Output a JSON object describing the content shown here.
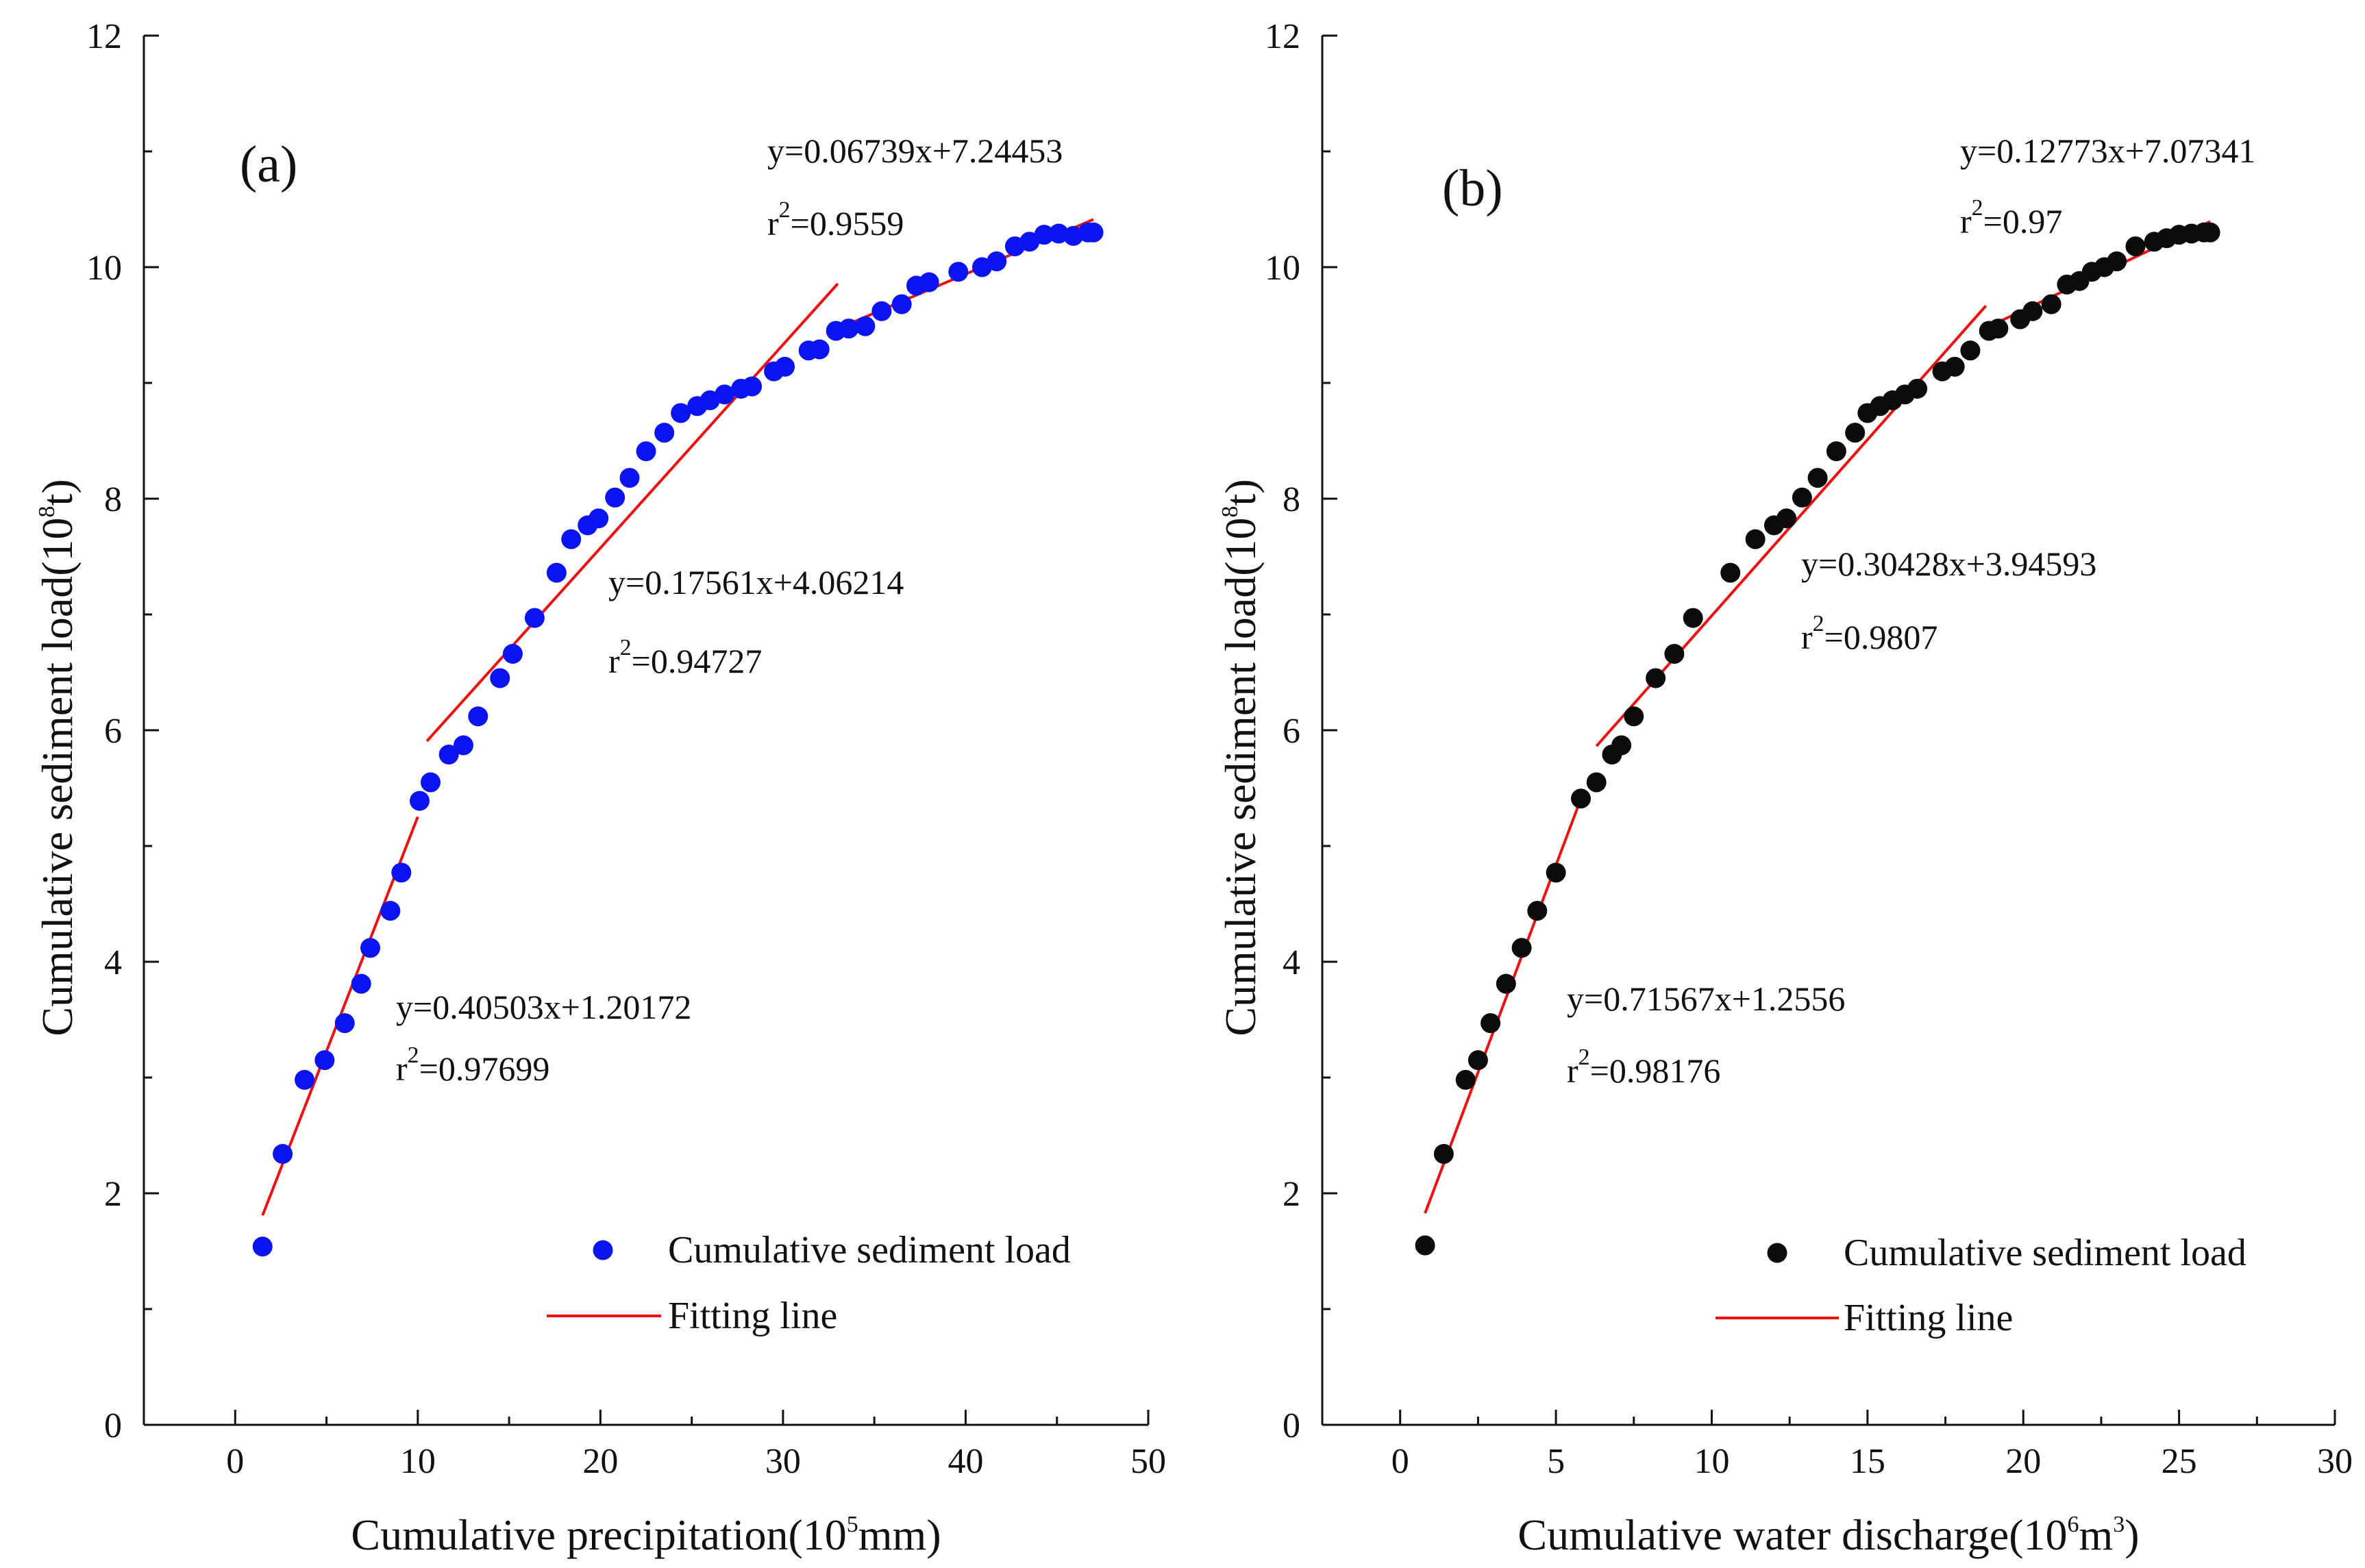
{
  "figure": {
    "description_free": true
  },
  "chart_data": [
    {
      "type": "scatter",
      "panel_label": "(a)",
      "xlabel": "Cumulative precipitation(10",
      "xlabel_sup": "5",
      "xlabel_tail": "mm)",
      "ylabel": "Cumulative sediment load(10",
      "ylabel_sup": "8",
      "ylabel_tail": "t)",
      "xlim": [
        -5,
        50
      ],
      "ylim": [
        0,
        12
      ],
      "xticks": [
        0,
        10,
        20,
        30,
        40,
        50
      ],
      "yticks": [
        0,
        2,
        4,
        6,
        8,
        10,
        12
      ],
      "point_color": "#0a14f0",
      "line_color": "#ee1111",
      "series": [
        {
          "name": "Cumulative sediment load",
          "x": [
            1.5,
            2.6,
            3.8,
            4.9,
            6.0,
            6.9,
            7.4,
            8.5,
            9.1,
            10.1,
            10.7,
            11.7,
            12.5,
            13.3,
            14.5,
            15.2,
            16.4,
            17.6,
            18.4,
            19.3,
            19.9,
            20.8,
            21.6,
            22.5,
            23.5,
            24.4,
            25.3,
            26.0,
            26.8,
            27.7,
            28.3,
            29.5,
            30.1,
            31.4,
            32.0,
            32.9,
            33.6,
            34.5,
            35.4,
            36.5,
            37.3,
            38.0,
            39.6,
            40.9,
            41.7,
            42.7,
            43.5,
            44.3,
            45.1,
            45.9,
            46.7,
            47.0
          ],
          "y": [
            1.54,
            2.34,
            2.98,
            3.15,
            3.47,
            3.81,
            4.12,
            4.44,
            4.77,
            5.39,
            5.55,
            5.79,
            5.87,
            6.12,
            6.45,
            6.66,
            6.97,
            7.36,
            7.65,
            7.77,
            7.83,
            8.01,
            8.18,
            8.41,
            8.57,
            8.74,
            8.8,
            8.85,
            8.9,
            8.95,
            8.97,
            9.1,
            9.14,
            9.28,
            9.29,
            9.45,
            9.47,
            9.49,
            9.62,
            9.68,
            9.84,
            9.87,
            9.96,
            10.0,
            10.05,
            10.18,
            10.22,
            10.28,
            10.29,
            10.27,
            10.3,
            10.3
          ]
        }
      ],
      "fits": [
        {
          "equation": "y=0.40503x+1.20172",
          "r2_label": "r",
          "r2_sup": "2",
          "r2_value": "=0.97699",
          "slope": 0.40503,
          "intercept": 1.20172,
          "x_range": [
            1.5,
            10.0
          ]
        },
        {
          "equation": "y=0.17561x+4.06214",
          "r2_label": "r",
          "r2_sup": "2",
          "r2_value": "=0.94727",
          "slope": 0.17561,
          "intercept": 4.06214,
          "x_range": [
            10.5,
            33.0
          ]
        },
        {
          "equation": "y=0.06739x+7.24453",
          "r2_label": "r",
          "r2_sup": "2",
          "r2_value": "=0.9559",
          "slope": 0.06739,
          "intercept": 7.24453,
          "x_range": [
            33.0,
            47.0
          ]
        }
      ],
      "legend": {
        "points_label": "Cumulative sediment load",
        "line_label": "Fitting line",
        "placement": "bottom-right"
      }
    },
    {
      "type": "scatter",
      "panel_label": "(b)",
      "xlabel": "Cumulative water discharge(10",
      "xlabel_sup": "6",
      "xlabel_mid": "m",
      "xlabel_sup2": "3",
      "xlabel_tail": ")",
      "ylabel": "Cumulative sediment load(10",
      "ylabel_sup": "8",
      "ylabel_tail": "t)",
      "xlim": [
        -2.5,
        30
      ],
      "ylim": [
        0,
        12
      ],
      "xticks": [
        0,
        5,
        10,
        15,
        20,
        25,
        30
      ],
      "yticks": [
        0,
        2,
        4,
        6,
        8,
        10,
        12
      ],
      "point_color": "#0b0b0b",
      "line_color": "#ee1111",
      "series": [
        {
          "name": "Cumulative sediment load",
          "x": [
            0.8,
            1.4,
            2.1,
            2.5,
            2.9,
            3.4,
            3.9,
            4.4,
            5.0,
            5.8,
            6.3,
            6.8,
            7.1,
            7.5,
            8.2,
            8.8,
            9.4,
            10.6,
            11.4,
            12.0,
            12.4,
            12.9,
            13.4,
            14.0,
            14.6,
            15.0,
            15.4,
            15.8,
            16.2,
            16.6,
            17.4,
            17.8,
            18.3,
            18.9,
            19.2,
            19.9,
            20.3,
            20.9,
            21.4,
            21.8,
            22.2,
            22.6,
            23.0,
            23.6,
            24.2,
            24.6,
            25.0,
            25.4,
            25.8,
            26.0
          ],
          "y": [
            1.55,
            2.34,
            2.98,
            3.15,
            3.47,
            3.81,
            4.12,
            4.44,
            4.77,
            5.41,
            5.55,
            5.79,
            5.87,
            6.12,
            6.45,
            6.66,
            6.97,
            7.36,
            7.65,
            7.77,
            7.83,
            8.01,
            8.18,
            8.41,
            8.57,
            8.74,
            8.8,
            8.85,
            8.9,
            8.95,
            9.1,
            9.14,
            9.28,
            9.45,
            9.47,
            9.55,
            9.62,
            9.68,
            9.85,
            9.88,
            9.96,
            10.0,
            10.05,
            10.18,
            10.22,
            10.25,
            10.28,
            10.29,
            10.3,
            10.3
          ]
        }
      ],
      "fits": [
        {
          "equation": "y=0.71567x+1.2556",
          "r2_label": "r",
          "r2_sup": "2",
          "r2_value": "=0.98176",
          "slope": 0.71567,
          "intercept": 1.2556,
          "x_range": [
            0.8,
            5.8
          ]
        },
        {
          "equation": "y=0.30428x+3.94593",
          "r2_label": "r",
          "r2_sup": "2",
          "r2_value": "=0.9807",
          "slope": 0.30428,
          "intercept": 3.94593,
          "x_range": [
            6.3,
            18.8
          ]
        },
        {
          "equation": "y=0.12773x+7.07341",
          "r2_label": "r",
          "r2_sup": "2",
          "r2_value": "=0.97",
          "slope": 0.12773,
          "intercept": 7.07341,
          "x_range": [
            19.0,
            26.0
          ]
        }
      ],
      "legend": {
        "points_label": "Cumulative sediment load",
        "line_label": "Fitting line",
        "placement": "bottom-right"
      }
    }
  ]
}
